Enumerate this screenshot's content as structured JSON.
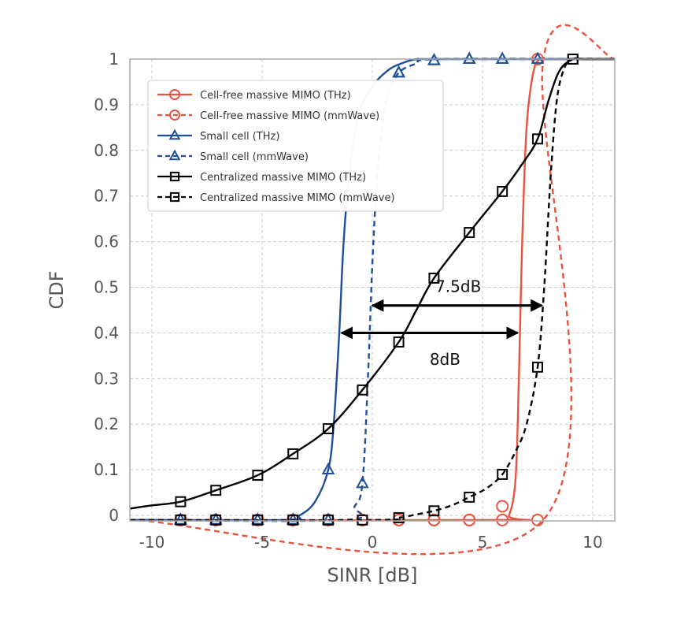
{
  "chart_data": {
    "type": "line",
    "title": "",
    "xlabel": "SINR [dB]",
    "ylabel": "CDF",
    "xlim": [
      -11,
      11
    ],
    "ylim": [
      -0.012,
      1.0
    ],
    "xticks": [
      -10,
      -5,
      0,
      5,
      10
    ],
    "xtick_labels": [
      "-10",
      "-5",
      "0",
      "5",
      "10"
    ],
    "yticks": [
      0,
      0.1,
      0.2,
      0.3,
      0.4,
      0.5,
      0.6,
      0.7,
      0.8,
      0.9,
      1
    ],
    "ytick_labels": [
      "0",
      "0.1",
      "0.2",
      "0.3",
      "0.4",
      "0.5",
      "0.6",
      "0.7",
      "0.8",
      "0.9",
      "1"
    ],
    "grid": true,
    "legend_position": "top-left",
    "series": [
      {
        "name": "Cell-free massive MIMO (THz)",
        "color": "#e8533f",
        "dash": "solid",
        "marker": "circle",
        "x": [
          -11,
          5.8,
          6.2,
          6.5,
          6.65,
          6.8,
          7.0,
          7.3,
          7.6,
          8.0,
          11
        ],
        "y": [
          -0.01,
          -0.01,
          0.0,
          0.08,
          0.3,
          0.6,
          0.85,
          0.97,
          1.0,
          1.0,
          1.0
        ],
        "marker_x": [
          -8.7,
          -7.1,
          -5.2,
          -3.6,
          -2.0,
          -0.45,
          1.2,
          2.8,
          4.4,
          5.9,
          7.5
        ],
        "marker_y": [
          -0.01,
          -0.01,
          -0.01,
          -0.01,
          -0.01,
          -0.01,
          -0.01,
          -0.01,
          -0.01,
          0.02,
          1.0
        ]
      },
      {
        "name": "Cell-free massive MIMO (mmWave)",
        "color": "#e8533f",
        "dash": "dashed",
        "marker": "circle",
        "x": [
          -11,
          7.75,
          7.76,
          11
        ],
        "y": [
          -0.01,
          -0.01,
          1.0,
          1.0
        ],
        "marker_x": [
          -8.7,
          -7.1,
          -5.2,
          -3.6,
          -2.0,
          -0.45,
          1.2,
          2.8,
          4.4,
          5.9,
          7.5
        ],
        "marker_y": [
          -0.01,
          -0.01,
          -0.01,
          -0.01,
          -0.01,
          -0.01,
          -0.01,
          -0.01,
          -0.01,
          -0.01,
          -0.01
        ]
      },
      {
        "name": "Small cell (THz)",
        "color": "#1f4e9a",
        "dash": "solid",
        "marker": "triangle",
        "x": [
          -11,
          -4.0,
          -3.3,
          -2.6,
          -2.0,
          -1.75,
          -1.5,
          -1.3,
          -1.0,
          -0.6,
          0.0,
          0.7,
          1.3,
          2.0,
          3.0,
          11
        ],
        "y": [
          -0.01,
          -0.01,
          0.0,
          0.03,
          0.1,
          0.2,
          0.4,
          0.6,
          0.77,
          0.88,
          0.94,
          0.975,
          0.99,
          1.0,
          1.0,
          1.0
        ],
        "marker_x": [
          -8.7,
          -7.1,
          -5.2,
          -3.6,
          -2.0,
          1.2,
          2.8,
          4.4,
          5.9
        ],
        "marker_y": [
          -0.01,
          -0.01,
          -0.01,
          -0.01,
          0.1,
          0.97,
          0.997,
          1.0,
          1.0
        ]
      },
      {
        "name": "Small cell (mmWave)",
        "color": "#1f4e9a",
        "dash": "dashed",
        "marker": "triangle",
        "x": [
          -11,
          -1.3,
          -0.8,
          -0.45,
          -0.2,
          0.0,
          0.2,
          0.4,
          0.7,
          1.2,
          2.0,
          3.0,
          11
        ],
        "y": [
          -0.01,
          -0.01,
          0.02,
          0.07,
          0.3,
          0.55,
          0.73,
          0.84,
          0.92,
          0.97,
          0.99,
          1.0,
          1.0
        ],
        "marker_x": [
          -8.7,
          -7.1,
          -5.2,
          -3.6,
          -2.0,
          -0.45,
          1.2,
          2.8,
          4.4,
          5.9,
          7.5
        ],
        "marker_y": [
          -0.01,
          -0.01,
          -0.01,
          -0.01,
          -0.01,
          0.07,
          0.97,
          0.997,
          1.0,
          1.0,
          1.0
        ]
      },
      {
        "name": "Centralized massive MIMO (THz)",
        "color": "#000000",
        "dash": "solid",
        "marker": "square",
        "x": [
          -11,
          -10.0,
          -8.7,
          -7.1,
          -5.2,
          -3.6,
          -2.0,
          -0.45,
          1.2,
          2.0,
          2.8,
          4.4,
          5.9,
          6.8,
          7.5,
          8.0,
          8.5,
          9.1,
          9.6,
          11
        ],
        "y": [
          0.015,
          0.022,
          0.03,
          0.055,
          0.088,
          0.135,
          0.19,
          0.275,
          0.38,
          0.45,
          0.52,
          0.62,
          0.71,
          0.77,
          0.825,
          0.91,
          0.975,
          1.0,
          1.0,
          1.0
        ],
        "marker_x": [
          -8.7,
          -7.1,
          -5.2,
          -3.6,
          -2.0,
          -0.45,
          1.2,
          2.8,
          4.4,
          5.9,
          7.5,
          9.1
        ],
        "marker_y": [
          0.03,
          0.055,
          0.088,
          0.135,
          0.19,
          0.275,
          0.38,
          0.52,
          0.62,
          0.71,
          0.825,
          1.0
        ]
      },
      {
        "name": "Centralized massive MIMO (mmWave)",
        "color": "#000000",
        "dash": "dashed",
        "marker": "square",
        "x": [
          -11,
          0.0,
          1.2,
          2.0,
          2.8,
          3.6,
          4.4,
          5.2,
          5.9,
          6.5,
          7.0,
          7.5,
          7.8,
          8.1,
          8.4,
          8.8,
          9.1,
          11
        ],
        "y": [
          -0.01,
          -0.01,
          -0.005,
          0.002,
          0.01,
          0.022,
          0.04,
          0.06,
          0.09,
          0.14,
          0.2,
          0.325,
          0.5,
          0.75,
          0.92,
          0.99,
          1.0,
          1.0
        ],
        "marker_x": [
          -8.7,
          -7.1,
          -5.2,
          -3.6,
          -2.0,
          -0.45,
          1.2,
          2.8,
          4.4,
          5.9,
          7.5,
          9.1
        ],
        "marker_y": [
          -0.01,
          -0.01,
          -0.01,
          -0.01,
          -0.01,
          -0.01,
          -0.005,
          0.01,
          0.04,
          0.09,
          0.325,
          1.0
        ]
      }
    ],
    "annotations": [
      {
        "text": "7.5dB",
        "arrow_x": [
          0.0,
          7.7
        ],
        "arrow_y": 0.46,
        "text_x": 3.9,
        "text_y": 0.49
      },
      {
        "text": "8dB",
        "arrow_x": [
          -1.4,
          6.6
        ],
        "arrow_y": 0.4,
        "text_x": 3.3,
        "text_y": 0.33
      }
    ]
  }
}
